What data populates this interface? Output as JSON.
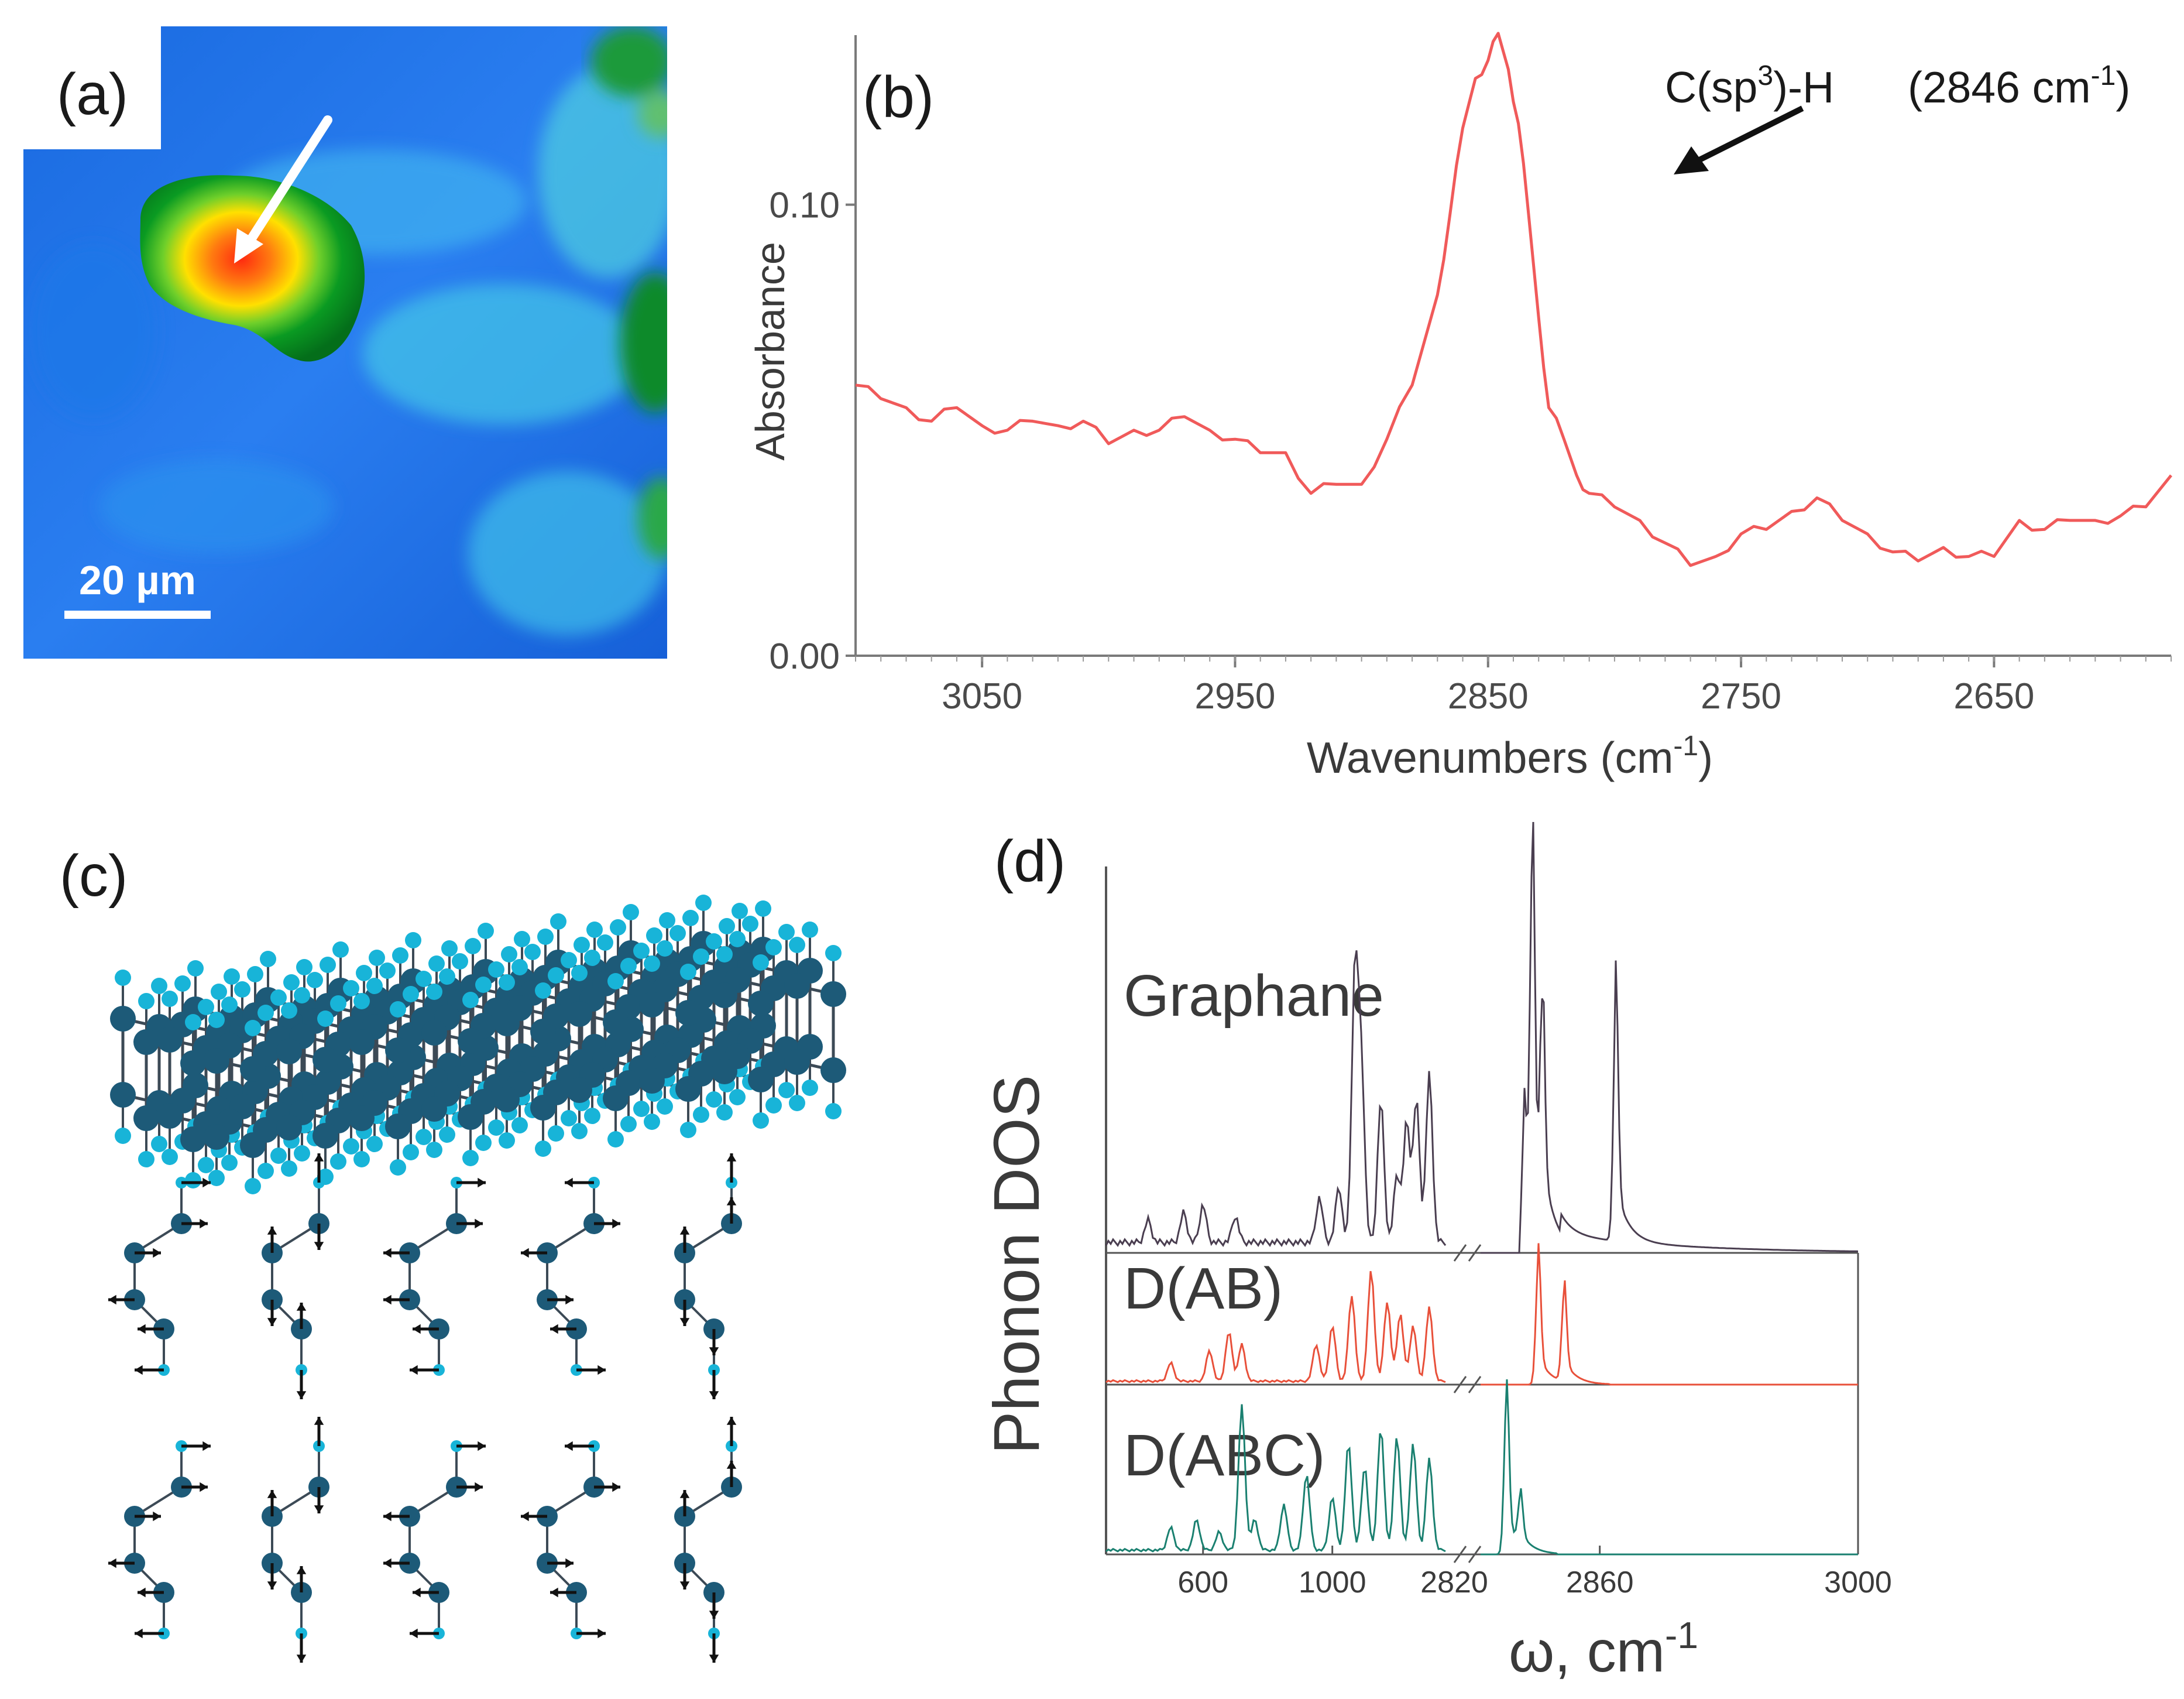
{
  "panels": {
    "a": {
      "label": "(a)",
      "scale_bar": "20 µm"
    },
    "b": {
      "label": "(b)",
      "annotation_main": "C(sp",
      "annotation_sup": "3",
      "annotation_tail": ")-H",
      "annotation_wn": "(2846 cm",
      "annotation_wn_sup": "-1",
      "annotation_wn_tail": ")"
    },
    "c": {
      "label": "(c)"
    },
    "d": {
      "label": "(d)"
    }
  },
  "chart_data": [
    {
      "type": "line",
      "panel": "b",
      "title": "",
      "xlabel": "Wavenumbers (cm-1)",
      "xlabel_main": "Wavenumbers (cm",
      "xlabel_sup": "-1",
      "xlabel_tail": ")",
      "ylabel": "Absorbance",
      "xlim": [
        3100,
        2580
      ],
      "ylim": [
        0.0,
        0.135
      ],
      "x_ticks": [
        "3050",
        "2950",
        "2850",
        "2750",
        "2650"
      ],
      "x_tick_values": [
        3050,
        2950,
        2850,
        2750,
        2650
      ],
      "y_ticks": [
        "0.00",
        "0.10"
      ],
      "y_tick_values": [
        0.0,
        0.1
      ],
      "series": [
        {
          "color": "#f05a5a",
          "x": [
            3100,
            3090,
            3080,
            3070,
            3060,
            3050,
            3040,
            3030,
            3020,
            3010,
            3000,
            2990,
            2980,
            2970,
            2960,
            2950,
            2940,
            2930,
            2920,
            2910,
            2900,
            2890,
            2880,
            2870,
            2865,
            2860,
            2855,
            2850,
            2846,
            2842,
            2838,
            2834,
            2830,
            2826,
            2820,
            2815,
            2810,
            2800,
            2790,
            2780,
            2770,
            2760,
            2750,
            2740,
            2730,
            2720,
            2710,
            2700,
            2690,
            2680,
            2670,
            2660,
            2650,
            2640,
            2630,
            2620,
            2610,
            2600,
            2590,
            2580
          ],
          "values": [
            0.06,
            0.057,
            0.055,
            0.052,
            0.055,
            0.051,
            0.05,
            0.052,
            0.051,
            0.052,
            0.047,
            0.05,
            0.05,
            0.053,
            0.05,
            0.048,
            0.045,
            0.045,
            0.036,
            0.038,
            0.038,
            0.048,
            0.06,
            0.08,
            0.098,
            0.117,
            0.128,
            0.132,
            0.138,
            0.13,
            0.118,
            0.098,
            0.075,
            0.055,
            0.048,
            0.04,
            0.036,
            0.033,
            0.03,
            0.025,
            0.02,
            0.022,
            0.027,
            0.028,
            0.032,
            0.035,
            0.03,
            0.027,
            0.023,
            0.021,
            0.024,
            0.022,
            0.022,
            0.03,
            0.028,
            0.03,
            0.03,
            0.031,
            0.033,
            0.04
          ]
        }
      ]
    },
    {
      "type": "line",
      "panel": "d",
      "ylabel": "Phonon DOS",
      "xlabel": "ω, cm-1",
      "xlabel_main": "ω, cm",
      "xlabel_sup": "-1",
      "x_ticks_left": [
        "600",
        "1000",
        "2820"
      ],
      "x_ticks_right": [
        "2860",
        "3000"
      ],
      "series": [
        {
          "name": "Graphane",
          "color": "#4a3e50",
          "left_peaks": [
            [
              430,
              0.06
            ],
            [
              540,
              0.08
            ],
            [
              600,
              0.1
            ],
            [
              700,
              0.07
            ],
            [
              960,
              0.12
            ],
            [
              1020,
              0.15
            ],
            [
              1070,
              0.72
            ],
            [
              1090,
              0.45
            ],
            [
              1150,
              0.38
            ],
            [
              1200,
              0.18
            ],
            [
              1230,
              0.32
            ],
            [
              1260,
              0.38
            ],
            [
              1300,
              0.45
            ]
          ],
          "right_peaks": [
            [
              2832,
              0.35
            ],
            [
              2836,
              1.0
            ],
            [
              2841,
              0.55
            ],
            [
              2878,
              0.6
            ]
          ]
        },
        {
          "name": "D(AB)",
          "color": "#e8503a",
          "left_peaks": [
            [
              500,
              0.15
            ],
            [
              620,
              0.25
            ],
            [
              680,
              0.4
            ],
            [
              720,
              0.3
            ],
            [
              950,
              0.3
            ],
            [
              1000,
              0.45
            ],
            [
              1060,
              0.7
            ],
            [
              1120,
              0.9
            ],
            [
              1170,
              0.65
            ],
            [
              1210,
              0.55
            ],
            [
              1250,
              0.45
            ],
            [
              1300,
              0.6
            ]
          ],
          "right_peaks": [
            [
              2839,
              0.95
            ],
            [
              2852,
              0.7
            ]
          ]
        },
        {
          "name": "D(ABC)",
          "color": "#1a8070",
          "left_peaks": [
            [
              500,
              0.15
            ],
            [
              580,
              0.2
            ],
            [
              650,
              0.12
            ],
            [
              720,
              0.95
            ],
            [
              760,
              0.2
            ],
            [
              850,
              0.3
            ],
            [
              920,
              0.5
            ],
            [
              1000,
              0.35
            ],
            [
              1050,
              0.7
            ],
            [
              1100,
              0.55
            ],
            [
              1150,
              0.8
            ],
            [
              1200,
              0.75
            ],
            [
              1250,
              0.7
            ],
            [
              1300,
              0.6
            ]
          ],
          "right_peaks": [
            [
              2823,
              1.0
            ],
            [
              2830,
              0.3
            ]
          ]
        }
      ]
    }
  ]
}
